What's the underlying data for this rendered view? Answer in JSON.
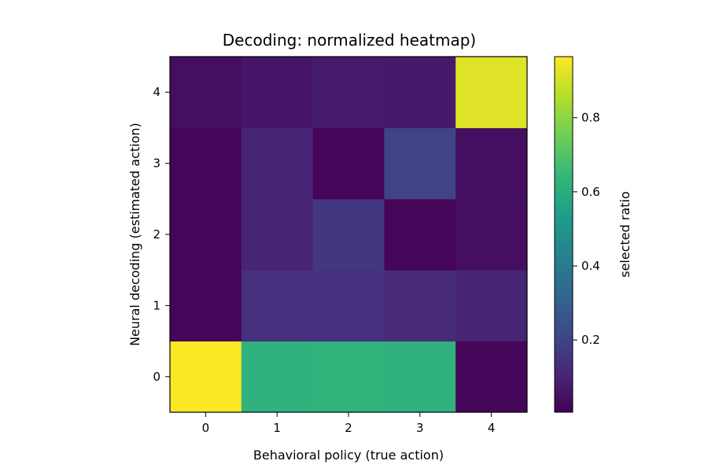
{
  "chart_data": {
    "type": "heatmap",
    "title": "Decoding: normalized heatmap)",
    "xlabel": "Behavioral policy (true action)",
    "ylabel": "Neural decoding (estimated action)",
    "x_categories": [
      "0",
      "1",
      "2",
      "3",
      "4"
    ],
    "y_categories": [
      "0",
      "1",
      "2",
      "3",
      "4"
    ],
    "values_by_row": [
      [
        0.96,
        0.62,
        0.63,
        0.62,
        0.02
      ],
      [
        0.02,
        0.14,
        0.14,
        0.12,
        0.1
      ],
      [
        0.02,
        0.1,
        0.16,
        0.02,
        0.04
      ],
      [
        0.02,
        0.1,
        0.02,
        0.2,
        0.04
      ],
      [
        0.04,
        0.06,
        0.08,
        0.07,
        0.92
      ]
    ],
    "colorbar": {
      "label": "selected ratio",
      "min": 0.005,
      "max": 0.965,
      "ticks": [
        0.2,
        0.4,
        0.6,
        0.8
      ]
    },
    "colormap": [
      "#440154",
      "#482878",
      "#3e4989",
      "#31688e",
      "#26828e",
      "#1f9e89",
      "#35b779",
      "#6ece58",
      "#b5de2b",
      "#fde725"
    ],
    "grid": false,
    "legend": "none"
  }
}
